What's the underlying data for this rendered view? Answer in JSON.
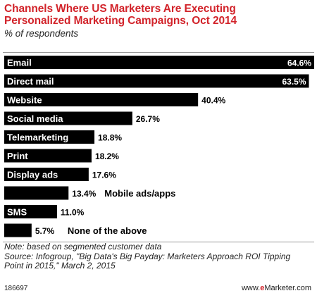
{
  "header": {
    "title_line1": "Channels Where US Marketers Are Executing",
    "title_line2": "Personalized Marketing Campaigns, Oct 2014",
    "subtitle": "% of respondents"
  },
  "chart_data": {
    "type": "bar",
    "orientation": "horizontal",
    "title": "Channels Where US Marketers Are Executing Personalized Marketing Campaigns, Oct 2014",
    "subtitle": "% of respondents",
    "categories": [
      "Email",
      "Direct mail",
      "Website",
      "Social media",
      "Telemarketing",
      "Print",
      "Display ads",
      "Mobile ads/apps",
      "SMS",
      "None of the above"
    ],
    "values": [
      64.6,
      63.5,
      40.4,
      26.7,
      18.8,
      18.2,
      17.6,
      13.4,
      11.0,
      5.7
    ],
    "value_labels": [
      "64.6%",
      "63.5%",
      "40.4%",
      "26.7%",
      "18.8%",
      "18.2%",
      "17.6%",
      "13.4%",
      "11.0%",
      "5.7%"
    ],
    "xlim": [
      0,
      64.6
    ],
    "bar_color": "#000000",
    "label_color_inside": "#ffffff",
    "grid": false,
    "legend": "none"
  },
  "notes": {
    "note": "Note: based on segmented customer data",
    "source_line1": "Source: Infogroup, \"Big Data's Big Payday: Marketers Approach ROI Tipping",
    "source_line2": "Point in 2015,\" March 2, 2015"
  },
  "footer": {
    "chart_id": "186697",
    "brand_prefix": "www.",
    "brand_accent": "e",
    "brand_suffix": "Marketer.com"
  },
  "colors": {
    "title": "#d2232a",
    "bar": "#000000",
    "text": "#222222"
  }
}
